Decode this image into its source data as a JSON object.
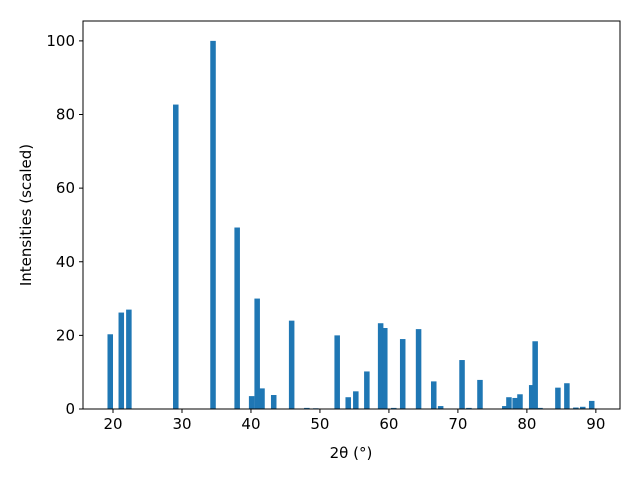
{
  "chart_data": {
    "type": "bar",
    "xlabel": "2θ (°)",
    "ylabel": "Intensities (scaled)",
    "x": [
      19.6,
      21.2,
      22.3,
      29.1,
      34.5,
      38.0,
      40.1,
      40.9,
      41.6,
      43.3,
      45.9,
      48.1,
      49.4,
      52.5,
      54.1,
      55.2,
      56.8,
      58.8,
      59.4,
      60.7,
      62.0,
      64.3,
      66.5,
      67.5,
      70.6,
      71.6,
      73.2,
      76.8,
      77.4,
      78.3,
      79.0,
      80.7,
      81.2,
      81.9,
      84.5,
      85.8,
      87.1,
      88.1,
      89.4
    ],
    "values": [
      20.3,
      26.2,
      27,
      82.7,
      100,
      49.3,
      3.5,
      30,
      5.6,
      3.8,
      24,
      0.3,
      0.2,
      20,
      3.2,
      4.8,
      10.2,
      23.3,
      22,
      0.3,
      19,
      21.7,
      7.5,
      0.8,
      13.3,
      0.3,
      7.9,
      0.8,
      3.2,
      3,
      4,
      6.5,
      18.4,
      0.3,
      5.8,
      7,
      0.4,
      0.6,
      2.2
    ],
    "bar_width": 0.8,
    "color": "#1f77b4",
    "xlim": [
      15.65,
      93.5
    ],
    "xticks": [
      20,
      30,
      40,
      50,
      60,
      70,
      80,
      90
    ],
    "ylim": [
      0,
      105.4
    ],
    "yticks": [
      0,
      20,
      40,
      60,
      80,
      100
    ]
  }
}
